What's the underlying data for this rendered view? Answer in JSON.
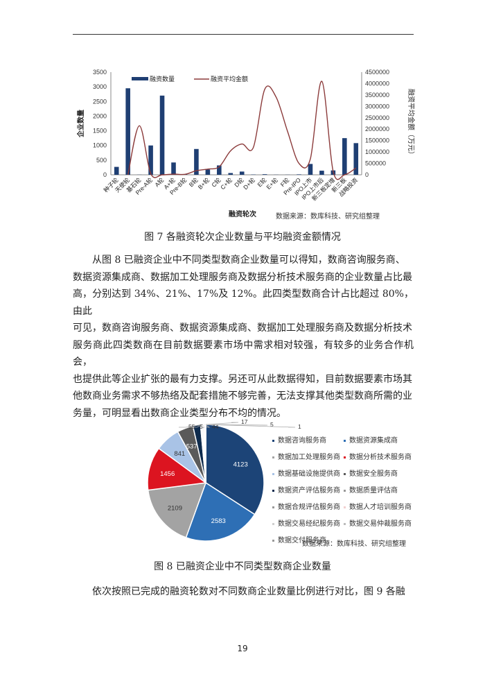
{
  "chart_data": [
    {
      "type": "bar+line",
      "categories": [
        "种子轮",
        "天使轮",
        "基石轮",
        "Pre-A轮",
        "A轮",
        "A+轮",
        "Pre-B轮",
        "B轮",
        "B+轮",
        "C轮",
        "C+轮",
        "D轮",
        "D+轮",
        "E轮",
        "E+轮",
        "F轮",
        "Pre-IPO",
        "IPO上市",
        "IPO上市后",
        "新三板定增",
        "新三板",
        "战略投资"
      ],
      "series": [
        {
          "name": "融资数量",
          "type": "bar",
          "axis": "left",
          "color": "#1f3f73",
          "values": [
            270,
            2950,
            5,
            1000,
            2700,
            420,
            20,
            880,
            180,
            320,
            60,
            110,
            10,
            20,
            5,
            5,
            15,
            370,
            140,
            150,
            1250,
            1080
          ]
        },
        {
          "name": "融资平均金额",
          "type": "line",
          "axis": "right",
          "color": "#8b3a3a",
          "values": [
            null,
            0,
            2150000,
            50000,
            0,
            30000,
            20000,
            180000,
            250000,
            350000,
            1050000,
            1350000,
            1200000,
            3750000,
            3400000,
            1900000,
            500000,
            700000,
            4100000,
            150000,
            0,
            300000
          ]
        }
      ],
      "xlabel": "融资轮次",
      "ylabel": "企业数量",
      "y2label": "融资平均金额（万元）",
      "ylim": [
        0,
        3500
      ],
      "yticks": [
        0,
        500,
        1000,
        1500,
        2000,
        2500,
        3000,
        3500
      ],
      "y2lim": [
        0,
        4500000
      ],
      "y2ticks": [
        0,
        500000,
        1000000,
        1500000,
        2000000,
        2500000,
        3000000,
        3500000,
        4000000,
        4500000
      ],
      "legend": "top"
    },
    {
      "type": "pie",
      "slices": [
        {
          "name": "数据咨询服务商",
          "value": 4123,
          "label": "4123",
          "color": "#1c4477"
        },
        {
          "name": "数据资源集成商",
          "value": 2583,
          "label": "2583",
          "color": "#2e6fb5"
        },
        {
          "name": "数据加工处理服务商",
          "value": 2109,
          "label": "2109",
          "color": "#a3a3a3"
        },
        {
          "name": "数据分析技术服务商",
          "value": 1456,
          "label": "1456",
          "color": "#dc1420"
        },
        {
          "name": "数据基础设施提供商",
          "value": 841,
          "label": "841",
          "color": "#a9c3e6"
        },
        {
          "name": "数据安全服务商",
          "value": 537,
          "label": "537",
          "color": "#5a5a5a"
        },
        {
          "name": "数据资产评估服务商",
          "value": 255,
          "label": "",
          "color": "#0e2b4d"
        },
        {
          "name": "数据质量评估商",
          "value": 55,
          "label": "55",
          "color": "#dfe8f4"
        },
        {
          "name": "数据合规评估服务商",
          "value": 53,
          "label": "53",
          "color": "#e6e6e6"
        },
        {
          "name": "数据人才培训服务商",
          "value": 44,
          "label": "44",
          "color": "#f2d0d0"
        },
        {
          "name": "数据交易经纪服务商",
          "value": 17,
          "label": "17",
          "color": "#cfcfcf"
        },
        {
          "name": "数据交易仲裁服务商",
          "value": 5,
          "label": "5",
          "color": "#bbbbbb"
        },
        {
          "name": "数据交付服务商",
          "value": 1,
          "label": "1",
          "color": "#999999"
        }
      ],
      "legend": "right"
    }
  ],
  "fig7": {
    "source": "数据来源：数库科技、研究组整理",
    "caption": "图 7  各融资轮次企业数量与平均融资金额情况"
  },
  "paragraph1": [
    "从图 8 已融资企业中不同类型数商企业数量可以得知，数商咨询服务商、",
    "数据资源集成商、数据加工处理服务商及数据分析技术服务商的企业数量占比最",
    "高，分别达到 34%、21%、17%及 12%。此四类型数商合计占比超过 80%，由此",
    "可见，数商咨询服务商、数据资源集成商、数据加工处理服务商及数据分析技术",
    "服务商此四类数商在目前数据要素市场中需求相对较强，有较多的业务合作机会，",
    "也提供此等企业扩张的最有力支撑。另还可从此数据得知，目前数据要素市场其",
    "他数商业务需求不够热络及配套措施不够完善，无法支撑其他类型数商所需的业",
    "务量，可明显看出数商企业类型分布不均的情况。"
  ],
  "fig8": {
    "source": "数据来源：数库科技、研究组整理",
    "caption": "图 8  已融资企业中不同类型数商企业数量"
  },
  "paragraph2": "依次按照已完成的融资轮数对不同数商企业数量比例进行对比，图 9 各融",
  "page_number": "19"
}
